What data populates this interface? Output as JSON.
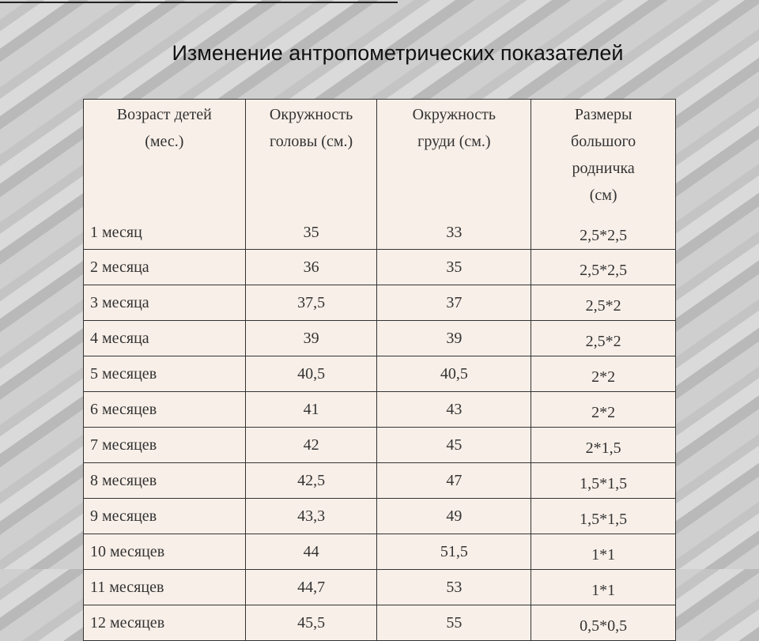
{
  "header": {
    "title": "Изменение антропометрических показателей"
  },
  "table": {
    "columns": [
      [
        "Возраст детей",
        "(мес.)"
      ],
      [
        "Окружность",
        "головы (см.)"
      ],
      [
        "Окружность",
        "груди (см.)"
      ],
      [
        "Размеры",
        "большого",
        "родничка",
        "(см)"
      ]
    ],
    "rows": [
      [
        "1 месяц",
        "35",
        "33",
        "2,5*2,5"
      ],
      [
        "2 месяца",
        "36",
        "35",
        "2,5*2,5"
      ],
      [
        "3 месяца",
        "37,5",
        "37",
        "2,5*2"
      ],
      [
        "4 месяца",
        "39",
        "39",
        "2,5*2"
      ],
      [
        "5 месяцев",
        "40,5",
        "40,5",
        "2*2"
      ],
      [
        "6 месяцев",
        "41",
        "43",
        "2*2"
      ],
      [
        "7 месяцев",
        "42",
        "45",
        "2*1,5"
      ],
      [
        "8 месяцев",
        "42,5",
        "47",
        "1,5*1,5"
      ],
      [
        "9 месяцев",
        "43,3",
        "49",
        "1,5*1,5"
      ],
      [
        "10 месяцев",
        "44",
        "51,5",
        "1*1"
      ],
      [
        "11 месяцев",
        "44,7",
        "53",
        "1*1"
      ],
      [
        "12 месяцев",
        "45,5",
        "55",
        "0,5*0,5"
      ]
    ]
  }
}
